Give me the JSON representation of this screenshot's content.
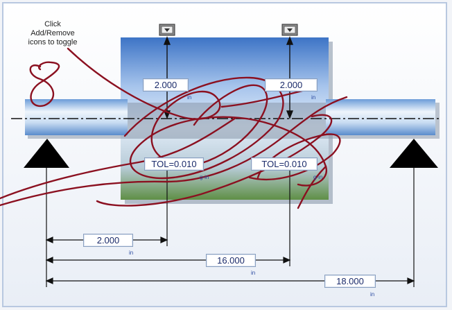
{
  "hint": {
    "line1": "Click",
    "line2": "Add/Remove",
    "line3": "icons to toggle"
  },
  "colors": {
    "frame": "#b8c8e0",
    "shaft_light": "#e9f1fb",
    "shaft_mid": "#9cc0e8",
    "hub_top": "#3f78c8",
    "hub_mid": "#c4d8f0",
    "hub_bottom": "#6e9850",
    "support": "#000000",
    "scribble": "#8b1020"
  },
  "icons": [
    {
      "name": "add-remove-load-icon",
      "semantic": "down-arrow-box-icon"
    },
    {
      "name": "add-remove-load-icon",
      "semantic": "down-arrow-box-icon"
    }
  ],
  "loads": {
    "left_value": "2.000",
    "right_value": "2.000",
    "unit": "in"
  },
  "tolerances": {
    "left": "TOL=0.010",
    "right": "TOL=0.010",
    "unit": "g-in"
  },
  "dimensions": {
    "d1": {
      "value": "2.000",
      "unit": "in"
    },
    "d2": {
      "value": "16.000",
      "unit": "in"
    },
    "d3": {
      "value": "18.000",
      "unit": "in"
    }
  },
  "annotation": {
    "digit": "8"
  }
}
